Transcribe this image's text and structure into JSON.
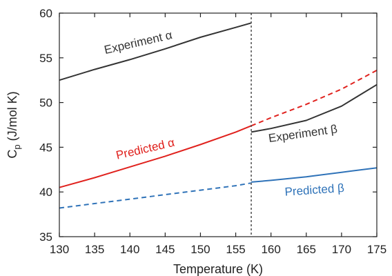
{
  "chart_data": {
    "type": "line",
    "xlabel": "Temperature (K)",
    "ylabel": {
      "main": "C",
      "sub": "p",
      "rest": " (J/mol K)"
    },
    "xlim": [
      130,
      175
    ],
    "ylim": [
      35,
      60
    ],
    "xticks": [
      130,
      135,
      140,
      145,
      150,
      155,
      160,
      165,
      170,
      175
    ],
    "yticks": [
      35,
      40,
      45,
      50,
      55,
      60
    ],
    "grid": false,
    "vline": {
      "x": 157.2,
      "style": "dotted",
      "color": "#555555"
    },
    "series": [
      {
        "name": "Experiment α",
        "color": "#333333",
        "style": "solid",
        "points": [
          [
            130,
            52.5
          ],
          [
            135,
            53.7
          ],
          [
            140,
            54.8
          ],
          [
            145,
            56.0
          ],
          [
            150,
            57.3
          ],
          [
            155,
            58.4
          ],
          [
            157.2,
            58.9
          ]
        ]
      },
      {
        "name": "Experiment β",
        "color": "#333333",
        "style": "solid",
        "points": [
          [
            157.2,
            46.7
          ],
          [
            160,
            47.1
          ],
          [
            165,
            48.0
          ],
          [
            170,
            49.6
          ],
          [
            175,
            52.0
          ]
        ]
      },
      {
        "name": "Predicted α",
        "color": "#e0211d",
        "style": "solid",
        "points": [
          [
            130,
            40.5
          ],
          [
            135,
            41.6
          ],
          [
            140,
            42.8
          ],
          [
            145,
            44.0
          ],
          [
            150,
            45.3
          ],
          [
            155,
            46.7
          ],
          [
            157.2,
            47.4
          ]
        ]
      },
      {
        "color": "#e0211d",
        "style": "dashed",
        "points": [
          [
            157.2,
            47.4
          ],
          [
            160,
            48.3
          ],
          [
            165,
            49.8
          ],
          [
            170,
            51.5
          ],
          [
            175,
            53.6
          ]
        ]
      },
      {
        "color": "#2e72b8",
        "style": "dashed",
        "points": [
          [
            130,
            38.2
          ],
          [
            135,
            38.7
          ],
          [
            140,
            39.2
          ],
          [
            145,
            39.7
          ],
          [
            150,
            40.2
          ],
          [
            155,
            40.7
          ],
          [
            157.2,
            41.0
          ]
        ]
      },
      {
        "name": "Predicted β",
        "color": "#2e72b8",
        "style": "solid",
        "points": [
          [
            157.2,
            41.1
          ],
          [
            160,
            41.3
          ],
          [
            165,
            41.7
          ],
          [
            170,
            42.2
          ],
          [
            175,
            42.7
          ]
        ]
      }
    ],
    "annotations": [
      {
        "text": "Experiment α",
        "x": 141.3,
        "y": 56.3,
        "angle": -13,
        "color": "#333333"
      },
      {
        "text": "Predicted α",
        "x": 142.3,
        "y": 44.4,
        "angle": -13,
        "color": "#e0211d"
      },
      {
        "text": "Experiment β",
        "x": 164.6,
        "y": 46.1,
        "angle": -8,
        "color": "#333333"
      },
      {
        "text": "Predicted β",
        "x": 166.2,
        "y": 39.8,
        "angle": -4,
        "color": "#2e72b8"
      }
    ]
  }
}
